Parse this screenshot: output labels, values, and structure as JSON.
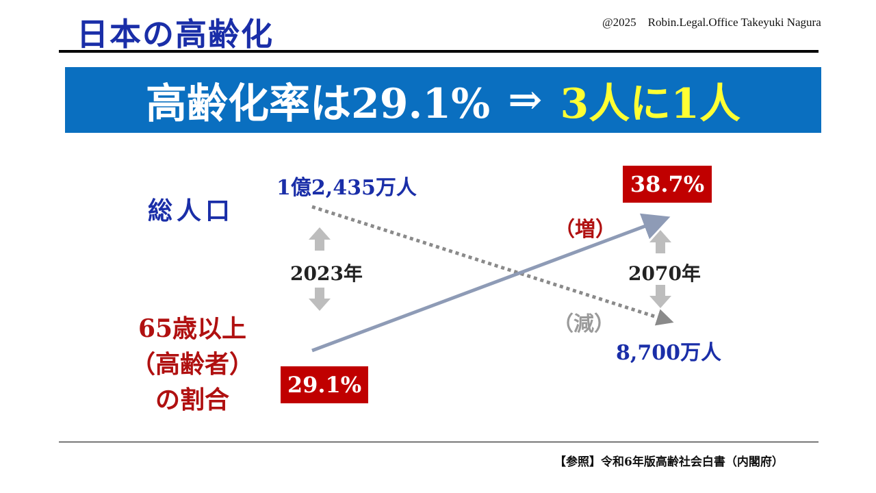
{
  "header": {
    "title": "日本の高齢化",
    "copyright": "@2025　Robin.Legal.Office Takeyuki Nagura"
  },
  "banner": {
    "main": "高齢化率は29.1%",
    "arrow": "⇒",
    "highlight": "3人に1人"
  },
  "diagram": {
    "population_label": "総人口",
    "population_2023": "1億2,435万人",
    "population_2070": "8,700万人",
    "aging_label_line1": "65歳以上",
    "aging_label_line2": "（高齢者）",
    "aging_label_line3": "の割合",
    "aging_2023": "29.1%",
    "aging_2070": "38.7%",
    "year_start": "2023年",
    "year_end": "2070年",
    "increase_label": "（増）",
    "decrease_label": "（減）"
  },
  "footer": {
    "source": "【参照】令和6年版高齢社会白書（内閣府）"
  },
  "colors": {
    "title_blue": "#1a2ea8",
    "banner_blue": "#0a6fc0",
    "highlight_yellow": "#ffff33",
    "accent_red": "#c00000",
    "arrow_gray": "#bdbdbd",
    "increase_line": "#8e9bb6",
    "decrease_line": "#8a8a8a"
  }
}
